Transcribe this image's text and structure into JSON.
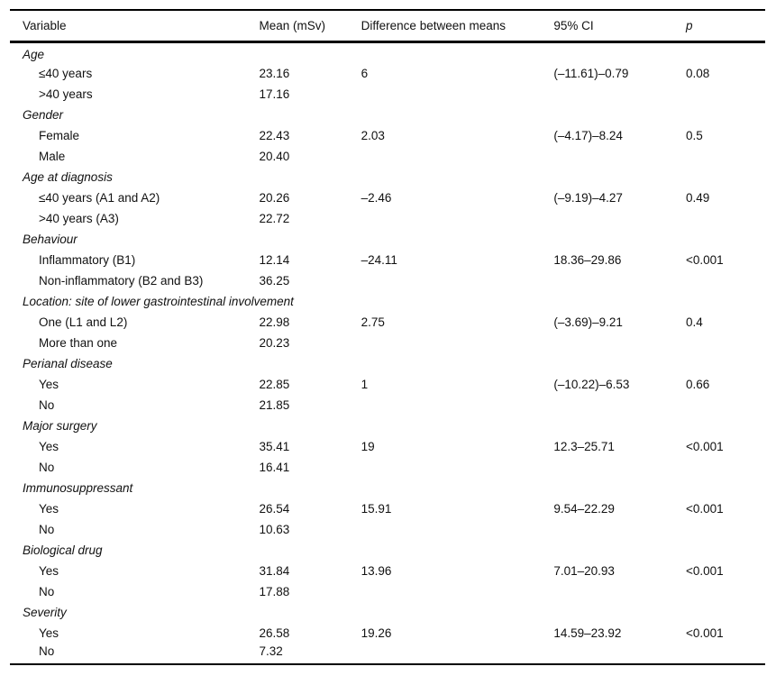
{
  "table": {
    "columns": [
      "Variable",
      "Mean (mSv)",
      "Difference between means",
      "95% CI",
      "p"
    ],
    "groups": [
      {
        "label": "Age",
        "rows": [
          {
            "variable": "≤40 years",
            "mean": "23.16",
            "diff": "6",
            "ci": "(–11.61)–0.79",
            "p": "0.08"
          },
          {
            "variable": ">40 years",
            "mean": "17.16",
            "diff": "",
            "ci": "",
            "p": ""
          }
        ]
      },
      {
        "label": "Gender",
        "rows": [
          {
            "variable": "Female",
            "mean": "22.43",
            "diff": "2.03",
            "ci": "(–4.17)–8.24",
            "p": "0.5"
          },
          {
            "variable": "Male",
            "mean": "20.40",
            "diff": "",
            "ci": "",
            "p": ""
          }
        ]
      },
      {
        "label": "Age at diagnosis",
        "rows": [
          {
            "variable": "≤40 years (A1 and A2)",
            "mean": "20.26",
            "diff": "–2.46",
            "ci": "(–9.19)–4.27",
            "p": "0.49"
          },
          {
            "variable": ">40 years (A3)",
            "mean": "22.72",
            "diff": "",
            "ci": "",
            "p": ""
          }
        ]
      },
      {
        "label": "Behaviour",
        "rows": [
          {
            "variable": "Inflammatory (B1)",
            "mean": "12.14",
            "diff": "–24.11",
            "ci": "18.36–29.86",
            "p": "<0.001"
          },
          {
            "variable": "Non-inflammatory (B2 and B3)",
            "mean": "36.25",
            "diff": "",
            "ci": "",
            "p": ""
          }
        ]
      },
      {
        "label": "Location: site of lower gastrointestinal involvement",
        "rows": [
          {
            "variable": "One (L1 and L2)",
            "mean": "22.98",
            "diff": "2.75",
            "ci": "(–3.69)–9.21",
            "p": "0.4"
          },
          {
            "variable": "More than one",
            "mean": "20.23",
            "diff": "",
            "ci": "",
            "p": ""
          }
        ]
      },
      {
        "label": "Perianal disease",
        "rows": [
          {
            "variable": "Yes",
            "mean": "22.85",
            "diff": "1",
            "ci": "(–10.22)–6.53",
            "p": "0.66"
          },
          {
            "variable": "No",
            "mean": "21.85",
            "diff": "",
            "ci": "",
            "p": ""
          }
        ]
      },
      {
        "label": "Major surgery",
        "rows": [
          {
            "variable": "Yes",
            "mean": "35.41",
            "diff": "19",
            "ci": "12.3–25.71",
            "p": "<0.001"
          },
          {
            "variable": "No",
            "mean": "16.41",
            "diff": "",
            "ci": "",
            "p": ""
          }
        ]
      },
      {
        "label": "Immunosuppressant",
        "rows": [
          {
            "variable": "Yes",
            "mean": "26.54",
            "diff": "15.91",
            "ci": "9.54–22.29",
            "p": "<0.001"
          },
          {
            "variable": "No",
            "mean": "10.63",
            "diff": "",
            "ci": "",
            "p": ""
          }
        ]
      },
      {
        "label": "Biological drug",
        "rows": [
          {
            "variable": "Yes",
            "mean": "31.84",
            "diff": "13.96",
            "ci": "7.01–20.93",
            "p": "<0.001"
          },
          {
            "variable": "No",
            "mean": "17.88",
            "diff": "",
            "ci": "",
            "p": ""
          }
        ]
      },
      {
        "label": "Severity",
        "rows": [
          {
            "variable": "Yes",
            "mean": "26.58",
            "diff": "19.26",
            "ci": "14.59–23.92",
            "p": "<0.001"
          },
          {
            "variable": "No",
            "mean": "7.32",
            "diff": "",
            "ci": "",
            "p": ""
          }
        ]
      }
    ]
  }
}
